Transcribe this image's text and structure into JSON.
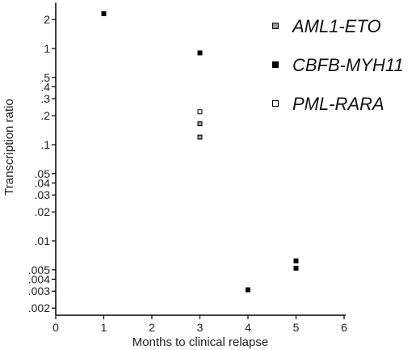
{
  "chart_data": {
    "type": "scatter",
    "title": "",
    "xlabel": "Months to clinical relapse",
    "ylabel": "Transcription ratio",
    "xlim": [
      0,
      6
    ],
    "ylim": [
      0.0017,
      3
    ],
    "yscale": "log",
    "x_ticks": [
      0,
      1,
      2,
      3,
      4,
      5,
      6
    ],
    "x_tick_labels": [
      "0",
      "1",
      "2",
      "3",
      "4",
      "5",
      "6"
    ],
    "y_ticks": [
      0.002,
      0.003,
      0.004,
      0.005,
      0.01,
      0.02,
      0.03,
      0.04,
      0.05,
      0.1,
      0.2,
      0.3,
      0.4,
      0.5,
      1,
      2
    ],
    "y_tick_labels": [
      ".002",
      ".003",
      ".004",
      ".005",
      ".01",
      ".02",
      ".03",
      ".04",
      ".05",
      ".1",
      ".2",
      ".3",
      ".4",
      ".5",
      "1",
      "2"
    ],
    "grid": false,
    "legend_position": "top-right",
    "series": [
      {
        "name": "AML1-ETO",
        "marker": "square-gray",
        "color": "#999999",
        "points": [
          {
            "x": 3,
            "y": 0.165
          },
          {
            "x": 3,
            "y": 0.12
          }
        ]
      },
      {
        "name": "CBFB-MYH11",
        "marker": "square-filled",
        "color": "#000000",
        "points": [
          {
            "x": 1,
            "y": 2.3
          },
          {
            "x": 3,
            "y": 0.9
          },
          {
            "x": 4,
            "y": 0.0031
          },
          {
            "x": 5,
            "y": 0.0062
          },
          {
            "x": 5,
            "y": 0.0052
          }
        ]
      },
      {
        "name": "PML-RARA",
        "marker": "square-open",
        "color": "#ffffff",
        "points": [
          {
            "x": 3,
            "y": 0.22
          }
        ]
      }
    ]
  }
}
